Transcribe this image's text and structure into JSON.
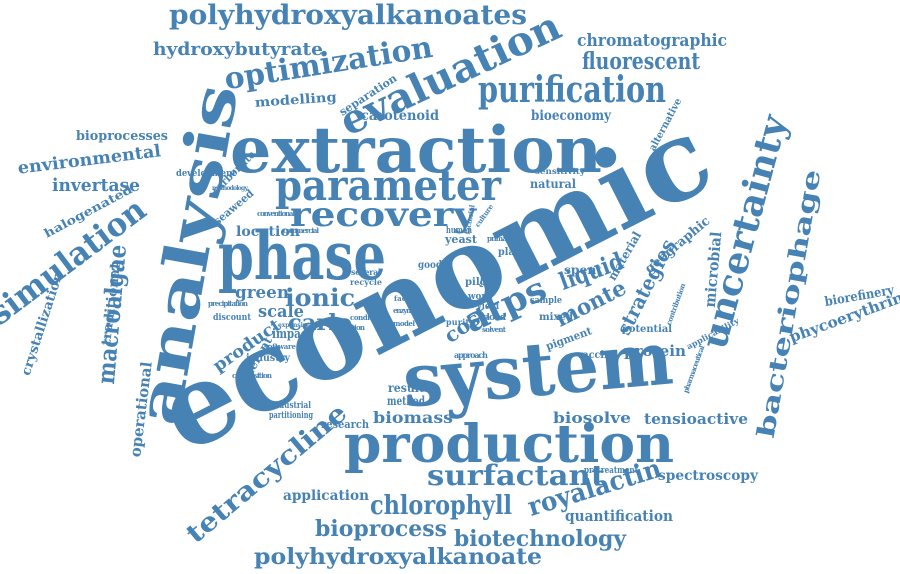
{
  "color": "#4682b4",
  "words": [
    "polyhydroxyalkanoates",
    "hydroxybutyrate",
    "optimization",
    "evaluation",
    "chromatographic",
    "fluorescent",
    "purification",
    "modelling",
    "separation",
    "carotenoid",
    "bioeconomy",
    "bioprocesses",
    "alternative",
    "analysis",
    "extraction",
    "economic",
    "environmental",
    "parameter",
    "invertase",
    "carbonate",
    "development",
    "seaweed",
    "natural",
    "sensitivity",
    "recovery",
    "uncertainty",
    "halogenated",
    "phase",
    "location",
    "yeast",
    "human",
    "simulation",
    "macroalgae",
    "bacteriophage",
    "geographic",
    "crystallization",
    "traditional",
    "operational",
    "liquid",
    "monte",
    "strategies",
    "microbial",
    "atps",
    "cost",
    "ionic",
    "carlo",
    "green",
    "scale",
    "spent",
    "good",
    "pilot",
    "work",
    "yield",
    "plant",
    "sample",
    "mixed",
    "material",
    "pigment",
    "potential",
    "applicability",
    "vaccine",
    "protein",
    "biorefinery",
    "phycoerythrin",
    "product",
    "different",
    "impact",
    "industry",
    "discount",
    "system",
    "production",
    "tetracycline",
    "biomass",
    "biosolve",
    "tensioactive",
    "industrial",
    "partitioning",
    "result",
    "method",
    "research",
    "surfactant",
    "royalactin",
    "application",
    "chlorophyll",
    "bioprocess",
    "biotechnology",
    "quantification",
    "spectroscopy",
    "pretreatment",
    "polyhydroxyalkanoate",
    "recycle",
    "several",
    "composition",
    "cloud",
    "software",
    "purity",
    "contribution",
    "pharmaceutical",
    "approach",
    "operation",
    "precipitation",
    "solvent",
    "factorial",
    "primary",
    "culture",
    "commercial",
    "conventional",
    "methodology",
    "enzyme",
    "condition",
    "expensive",
    "effect",
    "model",
    "factor"
  ]
}
